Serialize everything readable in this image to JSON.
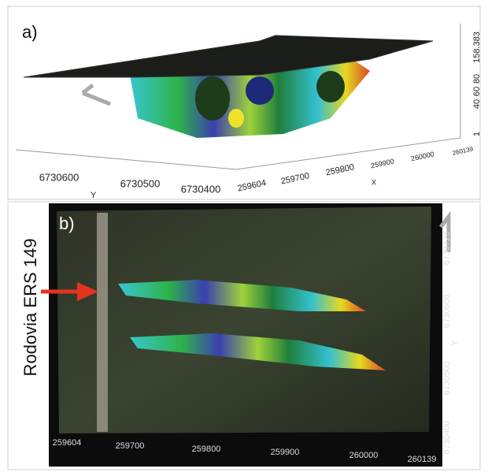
{
  "panel_a": {
    "label": "a)",
    "z_ticks": [
      "1",
      "40",
      "60",
      "80",
      "158.383"
    ],
    "x_ticks": [
      "259604",
      "259700",
      "259800",
      "259900",
      "260000",
      "260139"
    ],
    "x_axis_title": "X",
    "y_ticks": [
      "6730600",
      "6730500",
      "6730400"
    ],
    "y_axis_title": "Y"
  },
  "panel_b": {
    "label": "b)",
    "road_label": "Rodovia ERS 149",
    "x_ticks": [
      "259604",
      "259700",
      "259800",
      "259900",
      "260000",
      "260139"
    ],
    "y_ticks": [
      "6730720",
      "6730600",
      "6730500",
      "6730400"
    ],
    "y_axis_title": "Y"
  }
}
